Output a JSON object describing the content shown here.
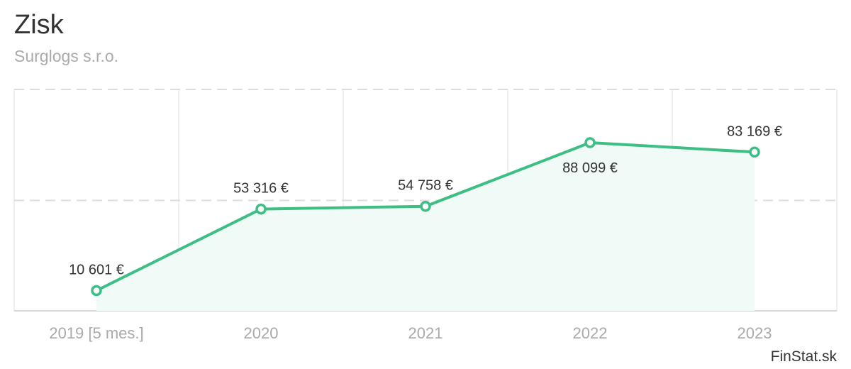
{
  "title": "Zisk",
  "subtitle": "Surglogs s.r.o.",
  "brand": "FinStat.sk",
  "colors": {
    "line": "#3dbe84",
    "area": "#f0faf6",
    "grid": "#dddddd",
    "text": "#333333",
    "muted": "#aaaaaa"
  },
  "chart_data": {
    "type": "area",
    "title": "Zisk",
    "subtitle": "Surglogs s.r.o.",
    "categories": [
      "2019 [5 mes.]",
      "2020",
      "2021",
      "2022",
      "2023"
    ],
    "series": [
      {
        "values": [
          10601,
          53316,
          54758,
          88099,
          83169
        ],
        "labels": [
          "10 601 €",
          "53 316 €",
          "54 758 €",
          "88 099 €",
          "83 169 €"
        ]
      }
    ],
    "ylim": [
      -0.1,
      100000
    ],
    "grid": true,
    "legend": "none"
  }
}
